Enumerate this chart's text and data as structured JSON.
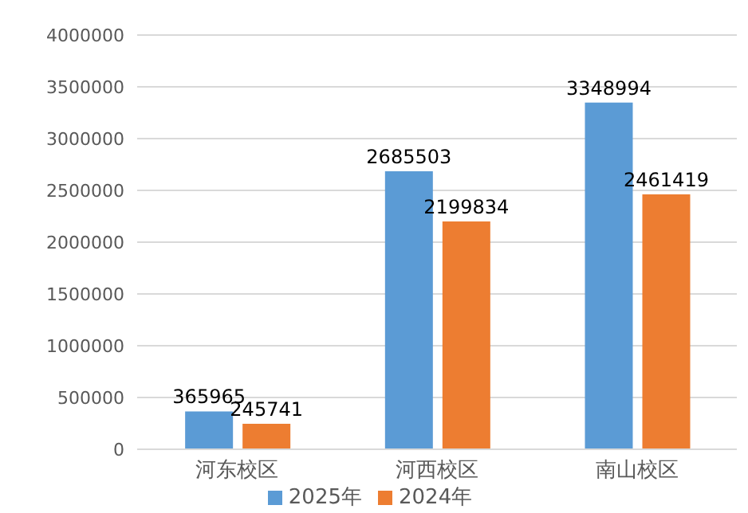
{
  "chart_data": {
    "type": "bar",
    "categories": [
      "河东校区",
      "河西校区",
      "南山校区"
    ],
    "series": [
      {
        "name": "2025年",
        "color": "#5b9bd5",
        "values": [
          365965,
          2685503,
          3348994
        ]
      },
      {
        "name": "2024年",
        "color": "#ed7d31",
        "values": [
          245741,
          2199834,
          2461419
        ]
      }
    ],
    "ylim": [
      0,
      4000000
    ],
    "yticks": [
      0,
      500000,
      1000000,
      1500000,
      2000000,
      2500000,
      3000000,
      3500000,
      4000000
    ],
    "grid": "y",
    "legend": "bottom",
    "data_labels": true
  }
}
